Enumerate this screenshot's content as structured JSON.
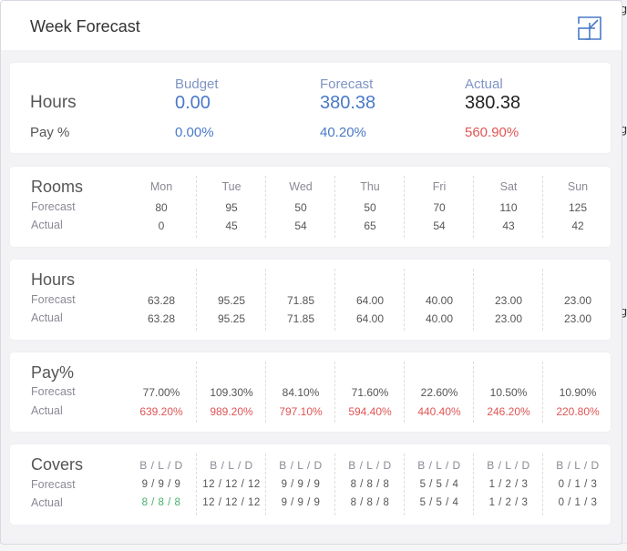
{
  "window": {
    "title": "Week Forecast"
  },
  "summary": {
    "headers": {
      "budget": "Budget",
      "forecast": "Forecast",
      "actual": "Actual"
    },
    "hours": {
      "label": "Hours",
      "budget": "0.00",
      "forecast": "380.38",
      "actual": "380.38"
    },
    "pay": {
      "label": "Pay %",
      "budget": "0.00%",
      "forecast": "40.20%",
      "actual": "560.90%"
    }
  },
  "days": [
    "Mon",
    "Tue",
    "Wed",
    "Thu",
    "Fri",
    "Sat",
    "Sun"
  ],
  "rooms": {
    "title": "Rooms",
    "forecast_label": "Forecast",
    "actual_label": "Actual",
    "forecast": [
      "80",
      "95",
      "50",
      "50",
      "70",
      "110",
      "125"
    ],
    "actual": [
      "0",
      "45",
      "54",
      "65",
      "54",
      "43",
      "42"
    ]
  },
  "hours": {
    "title": "Hours",
    "forecast_label": "Forecast",
    "actual_label": "Actual",
    "forecast": [
      "63.28",
      "95.25",
      "71.85",
      "64.00",
      "40.00",
      "23.00",
      "23.00"
    ],
    "actual": [
      "63.28",
      "95.25",
      "71.85",
      "64.00",
      "40.00",
      "23.00",
      "23.00"
    ]
  },
  "pay": {
    "title": "Pay%",
    "forecast_label": "Forecast",
    "actual_label": "Actual",
    "forecast": [
      "77.00%",
      "109.30%",
      "84.10%",
      "71.60%",
      "22.60%",
      "10.50%",
      "10.90%"
    ],
    "actual": [
      "639.20%",
      "989.20%",
      "797.10%",
      "594.40%",
      "440.40%",
      "246.20%",
      "220.80%"
    ]
  },
  "covers": {
    "title": "Covers",
    "forecast_label": "Forecast",
    "actual_label": "Actual",
    "header": "B / L / D",
    "forecast": [
      "9 / 9 / 9",
      "12 / 12 / 12",
      "9 / 9 / 9",
      "8 / 8 / 8",
      "5 / 5 / 4",
      "1 / 2 / 3",
      "0 / 1 / 3"
    ],
    "actual": [
      "8 / 8 / 8",
      "12 / 12 / 12",
      "9 / 9 / 9",
      "8 / 8 / 8",
      "5 / 5 / 4",
      "1 / 2 / 3",
      "0 / 1 / 3"
    ]
  },
  "background": {
    "edge_glyphs": [
      "g",
      "g",
      "g"
    ]
  },
  "colors": {
    "accent_blue": "#4a79c8",
    "header_blue": "#7f94c5",
    "negative_red": "#e05555",
    "positive_green": "#43b06a"
  },
  "icons": {
    "collapse": "collapse-arrow-icon"
  }
}
